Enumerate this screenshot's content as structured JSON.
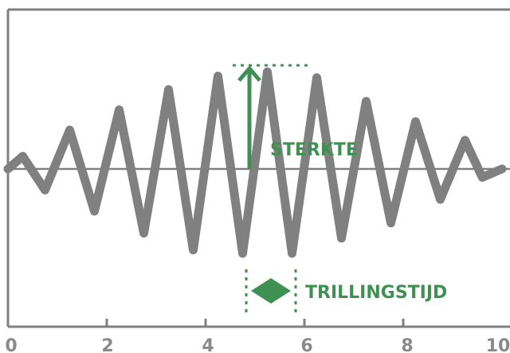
{
  "diagram": {
    "x_axis": {
      "min": 0,
      "max": 10,
      "ticks": [
        "0",
        "2",
        "4",
        "6",
        "8",
        "10"
      ]
    },
    "labels": {
      "amplitude": "STERKTE",
      "period": "TRILLINGSTIJD"
    },
    "colors": {
      "wave": "#808080",
      "axis": "#808080",
      "accent": "#3f9153",
      "tick_text": "#8a8a8a"
    },
    "wave_points": [
      [
        0.0,
        0.0
      ],
      [
        0.3,
        0.15
      ],
      [
        0.75,
        -0.25
      ],
      [
        1.25,
        0.46
      ],
      [
        1.75,
        -0.5
      ],
      [
        2.25,
        0.7
      ],
      [
        2.75,
        -0.76
      ],
      [
        3.25,
        0.94
      ],
      [
        3.75,
        -0.96
      ],
      [
        4.25,
        1.1
      ],
      [
        4.75,
        -1.0
      ],
      [
        5.25,
        1.15
      ],
      [
        5.75,
        -1.0
      ],
      [
        6.25,
        1.08
      ],
      [
        6.75,
        -0.82
      ],
      [
        7.25,
        0.8
      ],
      [
        7.75,
        -0.64
      ],
      [
        8.25,
        0.56
      ],
      [
        8.75,
        -0.36
      ],
      [
        9.25,
        0.34
      ],
      [
        9.6,
        -0.1
      ],
      [
        10.0,
        0.0
      ]
    ]
  }
}
